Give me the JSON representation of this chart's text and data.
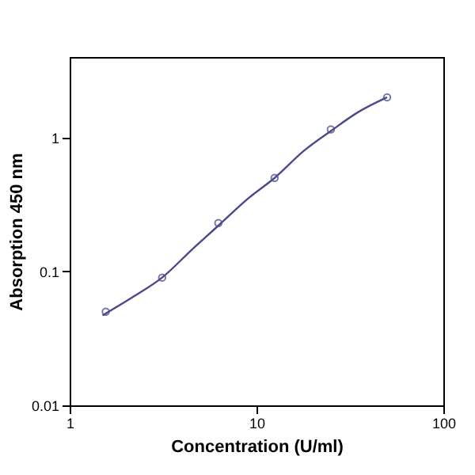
{
  "chart_data": {
    "type": "scatter",
    "xlabel": "Concentration (U/ml)",
    "ylabel": "Absorption 450 nm",
    "log": "xy",
    "grid": false,
    "xlim": [
      1,
      100
    ],
    "xticks": [
      1,
      10,
      100
    ],
    "ylim": [
      0.01,
      4
    ],
    "yticks": [
      0.01,
      0.1,
      1
    ],
    "series": [
      {
        "marker": "circle",
        "color": "#3b3b8c",
        "x": [
          1.56,
          3.125,
          6.25,
          12.5,
          25,
          50
        ],
        "values": [
          0.05,
          0.09,
          0.23,
          0.5,
          1.15,
          2.0
        ]
      },
      {
        "type": "line",
        "marker": "none",
        "color": "#4a4a8a",
        "line_style": "solid",
        "x": [
          1.5,
          2.2,
          3.125,
          4.5,
          6.25,
          9,
          12.5,
          18,
          25,
          35,
          50
        ],
        "values": [
          0.047,
          0.065,
          0.09,
          0.145,
          0.22,
          0.35,
          0.5,
          0.8,
          1.12,
          1.55,
          2.0
        ]
      }
    ]
  }
}
